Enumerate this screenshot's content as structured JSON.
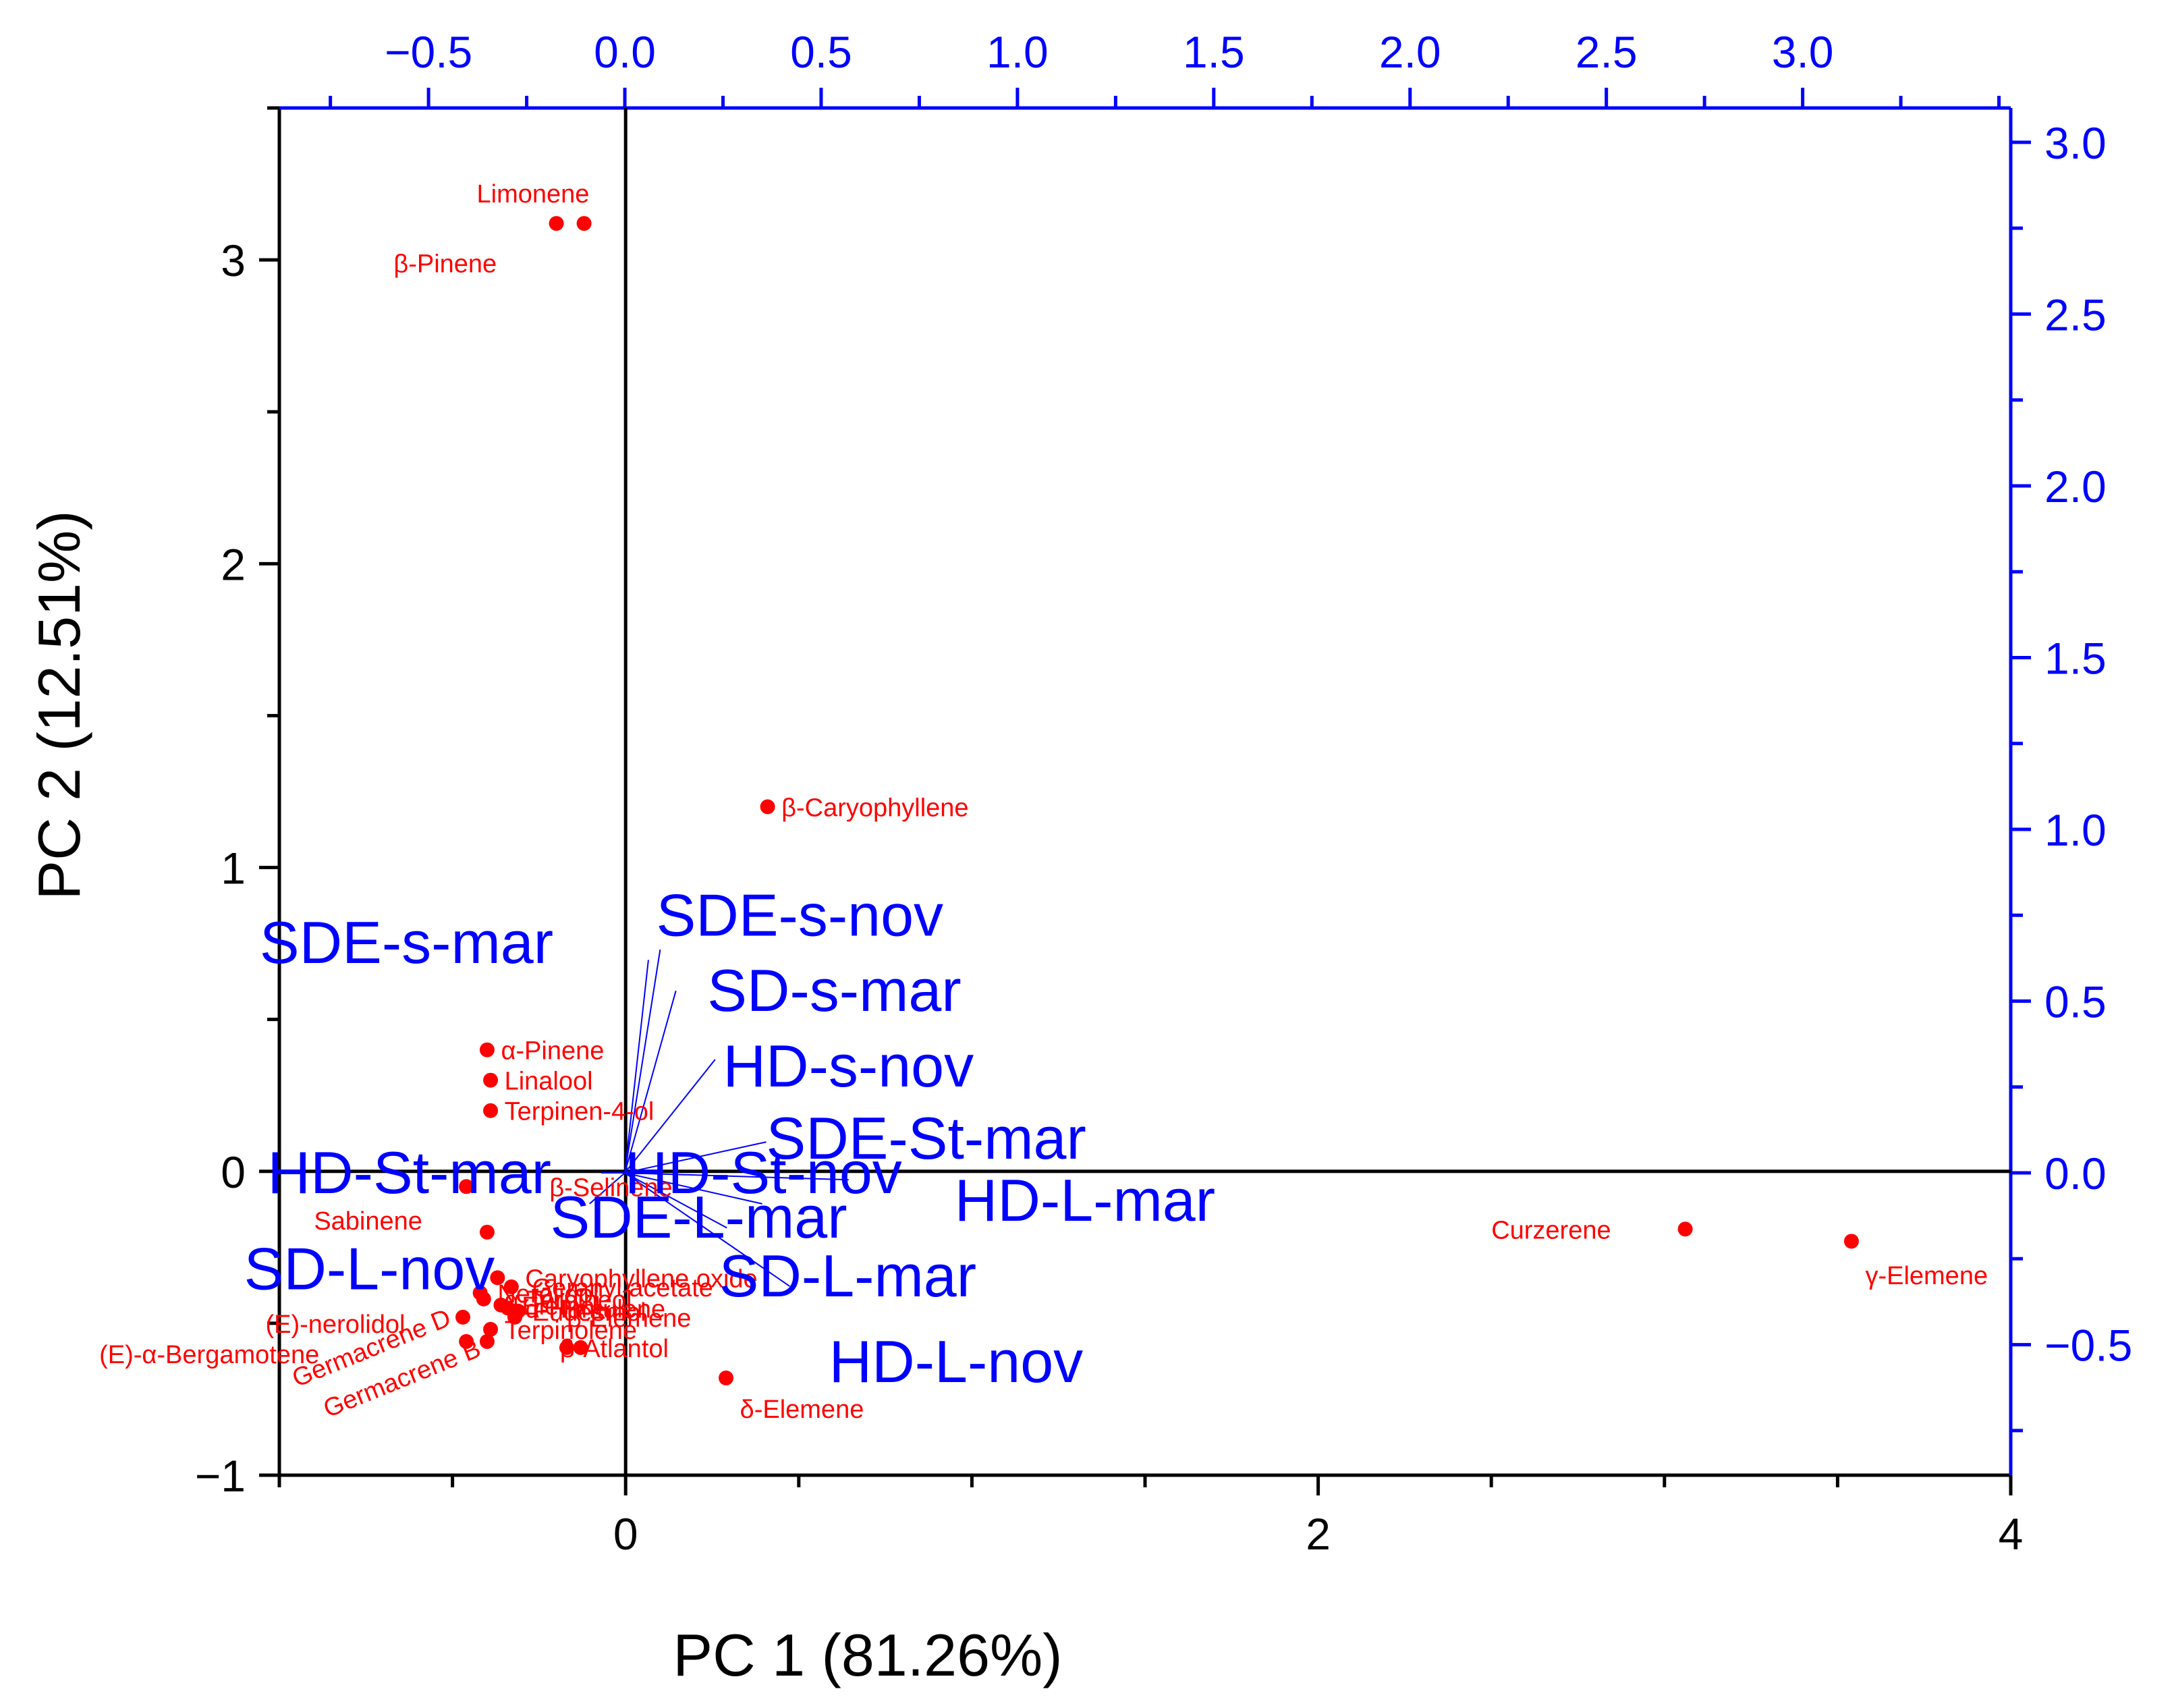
{
  "chart_data": {
    "type": "scatter",
    "title": "",
    "xlabel": "PC 1 (81.26%)",
    "ylabel": "PC 2 (12.51%)",
    "xlim": [
      -1,
      4
    ],
    "ylim": [
      -1,
      3.5
    ],
    "x_ticks": [
      0,
      2,
      4
    ],
    "x_tick_labels": [
      "0",
      "2",
      "4"
    ],
    "y_ticks": [
      -1,
      0,
      1,
      2,
      3
    ],
    "y_tick_labels": [
      "−1",
      "0",
      "1",
      "2",
      "3"
    ],
    "top_axis": {
      "lim": [
        -0.88,
        3.53
      ],
      "ticks": [
        -0.5,
        0,
        0.5,
        1,
        1.5,
        2,
        2.5,
        3
      ],
      "tick_labels": [
        "−0.5",
        "0.0",
        "0.5",
        "1.0",
        "1.5",
        "2.0",
        "2.5",
        "3.0"
      ]
    },
    "right_axis": {
      "lim": [
        -0.88,
        3.1
      ],
      "ticks": [
        -0.5,
        0,
        0.5,
        1,
        1.5,
        2,
        2.5,
        3
      ],
      "tick_labels": [
        "−0.5",
        "0.0",
        "0.5",
        "1.0",
        "1.5",
        "2.0",
        "2.5",
        "3.0"
      ]
    },
    "colors": {
      "scores": "#ff0000",
      "loadings": "#0000ff",
      "frame": "#000000"
    },
    "scores": [
      {
        "label": "Limonene",
        "x": -0.2,
        "y": 3.12,
        "label_dx": -0.23,
        "label_dy": 0.1,
        "anchor": "start"
      },
      {
        "label": "β-Pinene",
        "x": -0.12,
        "y": 3.12,
        "label_dx": -0.55,
        "label_dy": -0.13,
        "anchor": "start"
      },
      {
        "label": "β-Caryophyllene",
        "x": 0.41,
        "y": 1.2,
        "label_dx": 0.04,
        "label_dy": 0.0,
        "anchor": "start"
      },
      {
        "label": "α-Pinene",
        "x": -0.4,
        "y": 0.4,
        "label_dx": 0.04,
        "label_dy": 0.0,
        "anchor": "start"
      },
      {
        "label": "Linalool",
        "x": -0.39,
        "y": 0.3,
        "label_dx": 0.04,
        "label_dy": 0.0,
        "anchor": "start"
      },
      {
        "label": "Terpinen-4-ol",
        "x": -0.39,
        "y": 0.2,
        "label_dx": 0.04,
        "label_dy": 0.0,
        "anchor": "start"
      },
      {
        "label": "β-Selinene",
        "x": -0.46,
        "y": -0.05,
        "label_dx": 0.24,
        "label_dy": 0.0,
        "anchor": "start"
      },
      {
        "label": "Sabinene",
        "x": -0.4,
        "y": -0.2,
        "label_dx": -0.5,
        "label_dy": 0.04,
        "anchor": "start"
      },
      {
        "label": "Caryophyllene oxide",
        "x": -0.37,
        "y": -0.35,
        "label_dx": 0.08,
        "label_dy": 0.0,
        "anchor": "start"
      },
      {
        "label": "Geranyl acetate",
        "x": -0.33,
        "y": -0.38,
        "label_dx": 0.06,
        "label_dy": 0.0,
        "anchor": "start"
      },
      {
        "label": "Nerolidol",
        "x": -0.42,
        "y": -0.4,
        "label_dx": 0.05,
        "label_dy": 0.0,
        "anchor": "start"
      },
      {
        "label": "α-Terpineol",
        "x": -0.41,
        "y": -0.42,
        "label_dx": 0.06,
        "label_dy": 0.0,
        "anchor": "start"
      },
      {
        "label": "Elemol",
        "x": -0.36,
        "y": -0.44,
        "label_dx": 0.06,
        "label_dy": 0.0,
        "anchor": "start"
      },
      {
        "label": "α-Humulene",
        "x": -0.34,
        "y": -0.45,
        "label_dx": 0.05,
        "label_dy": 0.0,
        "anchor": "start"
      },
      {
        "label": "Eudesmol",
        "x": -0.31,
        "y": -0.46,
        "label_dx": 0.04,
        "label_dy": 0.0,
        "anchor": "start"
      },
      {
        "label": "β-Elemene",
        "x": -0.32,
        "y": -0.48,
        "label_dx": 0.15,
        "label_dy": 0.0,
        "anchor": "start"
      },
      {
        "label": "(E)-nerolidol",
        "x": -0.47,
        "y": -0.48,
        "label_dx": -0.57,
        "label_dy": -0.02,
        "anchor": "start"
      },
      {
        "label": "Terpinolene",
        "x": -0.39,
        "y": -0.52,
        "label_dx": 0.04,
        "label_dy": 0.0,
        "anchor": "start"
      },
      {
        "label": "(E)-α-Bergamotene",
        "x": -0.46,
        "y": -0.56,
        "label_dx": -1.06,
        "label_dy": -0.04,
        "anchor": "start"
      },
      {
        "label": "Germacrene D",
        "x": -0.4,
        "y": -0.56,
        "label_dx": -0.55,
        "label_dy": -0.12,
        "anchor": "start",
        "rotate": -22
      },
      {
        "label": "Germacrene B",
        "x": -0.17,
        "y": -0.58,
        "label_dx": -0.69,
        "label_dy": -0.2,
        "anchor": "start",
        "rotate": -22
      },
      {
        "label": "β-Atlantol",
        "x": -0.13,
        "y": -0.58,
        "label_dx": -0.06,
        "label_dy": 0.0,
        "anchor": "start"
      },
      {
        "label": "δ-Elemene",
        "x": 0.29,
        "y": -0.68,
        "label_dx": 0.04,
        "label_dy": -0.1,
        "anchor": "start"
      },
      {
        "label": "Curzerene",
        "x": 3.06,
        "y": -0.19,
        "label_dx": -0.56,
        "label_dy": 0.0,
        "anchor": "start"
      },
      {
        "label": "γ-Elemene",
        "x": 3.54,
        "y": -0.23,
        "label_dx": 0.04,
        "label_dy": -0.11,
        "anchor": "start"
      }
    ],
    "loadings": [
      {
        "label": "SDE-s-mar",
        "x": 0.06,
        "y": 0.62,
        "label_x": -0.93,
        "label_y": 0.67
      },
      {
        "label": "SDE-s-nov",
        "x": 0.09,
        "y": 0.65,
        "label_x": 0.08,
        "label_y": 0.75
      },
      {
        "label": "SD-s-mar",
        "x": 0.13,
        "y": 0.53,
        "label_x": 0.21,
        "label_y": 0.53
      },
      {
        "label": "HD-s-nov",
        "x": 0.23,
        "y": 0.33,
        "label_x": 0.25,
        "label_y": 0.31
      },
      {
        "label": "SDE-St-mar",
        "x": 0.36,
        "y": 0.09,
        "label_x": 0.36,
        "label_y": 0.1
      },
      {
        "label": "HD-St-mar",
        "x": -0.06,
        "y": 0.0,
        "label_x": -0.91,
        "label_y": 0.0
      },
      {
        "label": "HD-St-nov",
        "x": 0.03,
        "y": 0.01,
        "label_x": 0.0,
        "label_y": 0.0
      },
      {
        "label": "HD-L-mar",
        "x": 0.57,
        "y": -0.02,
        "label_x": 0.84,
        "label_y": -0.08
      },
      {
        "label": "SDE-L-mar",
        "x": 0.35,
        "y": -0.09,
        "label_x": -0.19,
        "label_y": -0.13
      },
      {
        "label": "SD-L-nov",
        "x": -0.09,
        "y": -0.09,
        "label_x": -0.97,
        "label_y": -0.28
      },
      {
        "label": "SD-L-mar",
        "x": 0.26,
        "y": -0.16,
        "label_x": 0.24,
        "label_y": -0.3
      },
      {
        "label": "HD-L-nov",
        "x": 0.42,
        "y": -0.33,
        "label_x": 0.52,
        "label_y": -0.55
      }
    ]
  }
}
